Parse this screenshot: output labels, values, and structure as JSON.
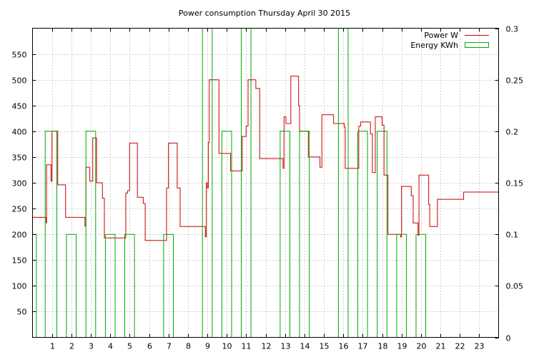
{
  "chart_data": {
    "type": "line",
    "title": "Power consumption Thursday April 30 2015",
    "x_ticks": [
      "1",
      "2",
      "3",
      "4",
      "5",
      "6",
      "7",
      "8",
      "9",
      "10",
      "11",
      "12",
      "13",
      "14",
      "15",
      "16",
      "17",
      "18",
      "19",
      "20",
      "21",
      "22",
      "23"
    ],
    "xlim": [
      0,
      24
    ],
    "y_left": {
      "ylim": [
        0,
        600
      ],
      "ticks": [
        "50",
        "100",
        "150",
        "200",
        "250",
        "300",
        "350",
        "400",
        "450",
        "500",
        "550"
      ]
    },
    "y_right": {
      "ylim": [
        0,
        0.3
      ],
      "ticks": [
        "0",
        "0.05",
        "0.1",
        "0.15",
        "0.2",
        "0.25",
        "0.3"
      ]
    },
    "grid": true,
    "legend_position": "top-right",
    "series": [
      {
        "name": "Power W",
        "color": "#cc0000",
        "axis": "left",
        "step": true,
        "points": [
          [
            0.0,
            233
          ],
          [
            0.7,
            222
          ],
          [
            0.72,
            335
          ],
          [
            0.95,
            303
          ],
          [
            1.0,
            400
          ],
          [
            1.3,
            296
          ],
          [
            1.7,
            233
          ],
          [
            2.7,
            216
          ],
          [
            2.75,
            330
          ],
          [
            2.95,
            303
          ],
          [
            3.1,
            387
          ],
          [
            3.3,
            300
          ],
          [
            3.6,
            270
          ],
          [
            3.7,
            193
          ],
          [
            4.2,
            193
          ],
          [
            4.8,
            280
          ],
          [
            4.9,
            285
          ],
          [
            5.0,
            377
          ],
          [
            5.4,
            272
          ],
          [
            5.7,
            260
          ],
          [
            5.8,
            188
          ],
          [
            6.8,
            188
          ],
          [
            6.9,
            290
          ],
          [
            7.0,
            377
          ],
          [
            7.45,
            290
          ],
          [
            7.6,
            215
          ],
          [
            8.9,
            195
          ],
          [
            8.95,
            300
          ],
          [
            9.0,
            290
          ],
          [
            9.05,
            378
          ],
          [
            9.1,
            500
          ],
          [
            9.6,
            357
          ],
          [
            10.2,
            323
          ],
          [
            10.8,
            390
          ],
          [
            11.0,
            410
          ],
          [
            11.1,
            500
          ],
          [
            11.5,
            483
          ],
          [
            11.7,
            347
          ],
          [
            12.9,
            328
          ],
          [
            12.95,
            428
          ],
          [
            13.05,
            415
          ],
          [
            13.3,
            507
          ],
          [
            13.7,
            450
          ],
          [
            13.75,
            400
          ],
          [
            14.2,
            350
          ],
          [
            14.8,
            330
          ],
          [
            14.9,
            432
          ],
          [
            15.5,
            415
          ],
          [
            16.05,
            408
          ],
          [
            16.1,
            328
          ],
          [
            16.8,
            410
          ],
          [
            16.9,
            418
          ],
          [
            17.4,
            395
          ],
          [
            17.5,
            320
          ],
          [
            17.65,
            428
          ],
          [
            18.0,
            412
          ],
          [
            18.1,
            315
          ],
          [
            18.3,
            200
          ],
          [
            18.95,
            195
          ],
          [
            19.0,
            293
          ],
          [
            19.5,
            275
          ],
          [
            19.6,
            222
          ],
          [
            19.85,
            198
          ],
          [
            19.9,
            315
          ],
          [
            20.4,
            258
          ],
          [
            20.45,
            215
          ],
          [
            20.8,
            215
          ],
          [
            20.85,
            268
          ],
          [
            22.2,
            282
          ],
          [
            24.0,
            270
          ]
        ]
      },
      {
        "name": "Energy KWh",
        "color": "#00aa00",
        "axis": "right",
        "step": true,
        "points": [
          [
            0.0,
            0.1
          ],
          [
            0.2,
            0.0
          ],
          [
            0.65,
            0.2
          ],
          [
            1.25,
            0.0
          ],
          [
            1.75,
            0.1
          ],
          [
            2.25,
            0.0
          ],
          [
            2.75,
            0.2
          ],
          [
            3.25,
            0.0
          ],
          [
            3.75,
            0.1
          ],
          [
            4.25,
            0.0
          ],
          [
            4.75,
            0.1
          ],
          [
            5.25,
            0.0
          ],
          [
            6.75,
            0.1
          ],
          [
            7.25,
            0.0
          ],
          [
            8.75,
            0.3
          ],
          [
            9.25,
            0.0
          ],
          [
            9.75,
            0.2
          ],
          [
            10.25,
            0.0
          ],
          [
            10.75,
            0.3
          ],
          [
            11.25,
            0.0
          ],
          [
            12.75,
            0.2
          ],
          [
            13.25,
            0.0
          ],
          [
            13.75,
            0.2
          ],
          [
            14.25,
            0.0
          ],
          [
            15.75,
            0.3
          ],
          [
            16.25,
            0.0
          ],
          [
            16.75,
            0.2
          ],
          [
            17.25,
            0.0
          ],
          [
            17.75,
            0.2
          ],
          [
            18.25,
            0.0
          ],
          [
            18.75,
            0.1
          ],
          [
            19.25,
            0.0
          ],
          [
            19.75,
            0.1
          ],
          [
            20.25,
            0.0
          ]
        ]
      }
    ]
  }
}
